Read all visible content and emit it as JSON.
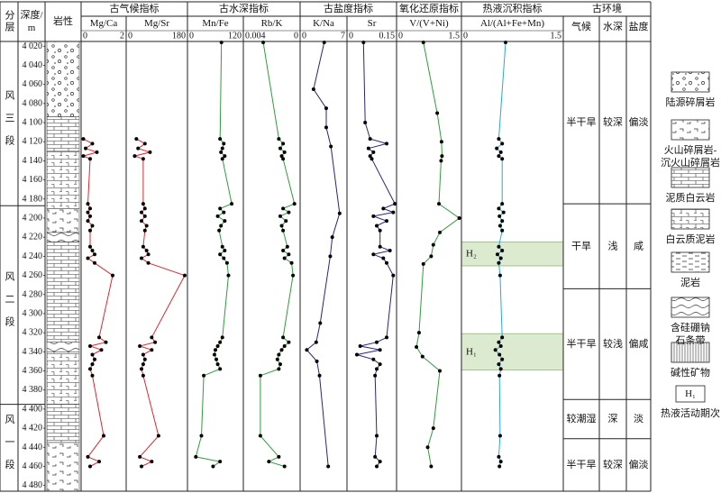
{
  "chart_data": {
    "type": "well-log",
    "layer_header": "分层",
    "depth_header": [
      "深度/",
      "m"
    ],
    "lithology_header": "岩性",
    "ylim": [
      4015,
      4486
    ],
    "yticks": [
      {
        "value": 4020,
        "label": "4 020"
      },
      {
        "value": 4040,
        "label": "4 040"
      },
      {
        "value": 4060,
        "label": "4 060"
      },
      {
        "value": 4080,
        "label": "4 080"
      },
      {
        "value": 4100,
        "label": "4 100"
      },
      {
        "value": 4120,
        "label": "4 120"
      },
      {
        "value": 4140,
        "label": "4 140"
      },
      {
        "value": 4160,
        "label": "4 160"
      },
      {
        "value": 4180,
        "label": "4 180"
      },
      {
        "value": 4200,
        "label": "4 200"
      },
      {
        "value": 4220,
        "label": "4 220"
      },
      {
        "value": 4240,
        "label": "4 240"
      },
      {
        "value": 4260,
        "label": "4 260"
      },
      {
        "value": 4280,
        "label": "4 280"
      },
      {
        "value": 4300,
        "label": "4 300"
      },
      {
        "value": 4320,
        "label": "4 320"
      },
      {
        "value": 4340,
        "label": "4 340"
      },
      {
        "value": 4360,
        "label": "4 360"
      },
      {
        "value": 4380,
        "label": "4 380"
      },
      {
        "value": 4400,
        "label": "4 400"
      },
      {
        "value": 4420,
        "label": "4 420"
      },
      {
        "value": 4440,
        "label": "4 440"
      },
      {
        "value": 4460,
        "label": "4 460"
      },
      {
        "value": 4480,
        "label": "4 480"
      }
    ],
    "strata": [
      {
        "name": "风三段",
        "base": 4187
      },
      {
        "name": "风二段",
        "base": 4395
      },
      {
        "name": "风一段"
      }
    ],
    "lithology": [
      {
        "rock": 0,
        "base": 4094
      },
      {
        "rock": 2,
        "base": 4130
      },
      {
        "rock": 3,
        "base": 4190
      },
      {
        "rock": 1,
        "base": 4215
      },
      {
        "rock": 5,
        "base": 4225
      },
      {
        "rock": 2,
        "base": 4330
      },
      {
        "rock": 5,
        "base": 4340
      },
      {
        "rock": 3,
        "base": 4395
      },
      {
        "rock": 2,
        "base": 4435
      },
      {
        "rock": 1
      }
    ],
    "groups": [
      {
        "name": "古气候指标",
        "tracks": [
          {
            "name": "Mg/Ca",
            "xlim": [
              0,
              2
            ],
            "color": "#e0282e",
            "depths": [
              4117,
              4122,
              4127,
              4131,
              4135,
              4138,
              4185,
              4190,
              4194,
              4198,
              4203,
              4208,
              4213,
              4230,
              4234,
              4238,
              4242,
              4247,
              4260,
              4325,
              4330,
              4334,
              4338,
              4343,
              4348,
              4353,
              4358,
              4365,
              4428,
              4450,
              4455,
              4460
            ],
            "values": [
              0.1,
              0.5,
              0.2,
              0.7,
              0.1,
              0.4,
              0.3,
              0.4,
              0.3,
              0.4,
              0.3,
              0.5,
              0.4,
              0.4,
              0.5,
              0.6,
              0.3,
              0.6,
              1.4,
              0.8,
              1.1,
              0.4,
              0.9,
              0.5,
              0.6,
              0.5,
              0.4,
              0.5,
              1.0,
              0.3,
              0.8,
              0.4
            ]
          },
          {
            "name": "Mg/Sr",
            "xlim": [
              0,
              180
            ],
            "color": "#e0282e",
            "depths": [
              4117,
              4122,
              4127,
              4131,
              4135,
              4138,
              4185,
              4190,
              4194,
              4198,
              4203,
              4208,
              4213,
              4230,
              4234,
              4238,
              4242,
              4247,
              4260,
              4325,
              4330,
              4334,
              4338,
              4343,
              4348,
              4353,
              4358,
              4365,
              4428,
              4450,
              4455,
              4460
            ],
            "values": [
              30,
              55,
              35,
              70,
              25,
              50,
              50,
              55,
              45,
              55,
              45,
              60,
              55,
              50,
              60,
              65,
              45,
              65,
              172,
              75,
              85,
              40,
              75,
              50,
              55,
              50,
              45,
              50,
              95,
              40,
              75,
              45
            ]
          }
        ]
      },
      {
        "name": "古水深指标",
        "tracks": [
          {
            "name": "Mn/Fe",
            "xlim": [
              0,
              120
            ],
            "color": "#2e9e3a",
            "depths": [
              4016,
              4117,
              4122,
              4127,
              4131,
              4135,
              4138,
              4185,
              4190,
              4194,
              4198,
              4203,
              4208,
              4213,
              4230,
              4234,
              4238,
              4242,
              4247,
              4260,
              4325,
              4330,
              4334,
              4338,
              4343,
              4348,
              4353,
              4358,
              4365,
              4428,
              4450,
              4455,
              4460
            ],
            "values": [
              73,
              70,
              78,
              75,
              72,
              80,
              75,
              95,
              70,
              78,
              65,
              80,
              72,
              68,
              75,
              80,
              70,
              78,
              85,
              88,
              75,
              70,
              65,
              60,
              58,
              62,
              65,
              70,
              35,
              30,
              18,
              70,
              55
            ]
          },
          {
            "name": "Rb/K",
            "xlim": [
              0.004,
              0
            ],
            "color": "#2e9e3a",
            "depths": [
              4016,
              4117,
              4122,
              4127,
              4131,
              4135,
              4138,
              4185,
              4190,
              4194,
              4198,
              4203,
              4208,
              4213,
              4230,
              4234,
              4238,
              4242,
              4247,
              4260,
              4325,
              4330,
              4334,
              4338,
              4343,
              4348,
              4353,
              4358,
              4365,
              4428,
              4450,
              4455,
              4460
            ],
            "values": [
              0.0026,
              0.0015,
              0.0012,
              0.0014,
              0.0011,
              0.0013,
              0.0012,
              0.0004,
              0.0012,
              0.0008,
              0.0014,
              0.001,
              0.0013,
              0.0012,
              0.0009,
              0.0012,
              0.0008,
              0.0011,
              0.0006,
              0.0005,
              0.0012,
              0.0008,
              0.0011,
              0.0013,
              0.0015,
              0.0016,
              0.0014,
              0.0015,
              0.0028,
              0.0028,
              0.0015,
              0.0022,
              0.0011
            ]
          }
        ]
      },
      {
        "name": "古盐度指标",
        "tracks": [
          {
            "name": "K/Na",
            "xlim": [
              0,
              7
            ],
            "color": "#26267e",
            "depths": [
              4016,
              4065,
              4085,
              4105,
              4125,
              4195,
              4220,
              4240,
              4310,
              4330,
              4338,
              4350,
              4365,
              4460
            ],
            "values": [
              3.6,
              2.0,
              3.9,
              3.9,
              4.6,
              5.9,
              4.8,
              4.5,
              3.0,
              2.4,
              1.0,
              2.5,
              2.9,
              4.2
            ]
          },
          {
            "name": "Sr",
            "xlim": [
              0,
              0.15
            ],
            "color": "#26267e",
            "depths": [
              4016,
              4100,
              4117,
              4122,
              4127,
              4131,
              4135,
              4138,
              4185,
              4190,
              4194,
              4198,
              4203,
              4208,
              4213,
              4230,
              4234,
              4238,
              4242,
              4247,
              4260,
              4325,
              4330,
              4334,
              4338,
              4343,
              4348,
              4353,
              4358,
              4365,
              4428,
              4450,
              4455,
              4460
            ],
            "values": [
              0.05,
              0.055,
              0.07,
              0.12,
              0.065,
              0.08,
              0.07,
              0.075,
              0.145,
              0.11,
              0.14,
              0.08,
              0.12,
              0.09,
              0.1,
              0.1,
              0.13,
              0.08,
              0.11,
              0.12,
              0.14,
              0.12,
              0.09,
              0.04,
              0.1,
              0.03,
              0.08,
              0.1,
              0.09,
              0.085,
              0.09,
              0.085,
              0.1,
              0.09
            ]
          }
        ]
      },
      {
        "name": "氧化还原指标",
        "tracks": [
          {
            "name": "V/(V+Ni)",
            "xlim": [
              0,
              1.5
            ],
            "color": "#2e9e3a",
            "depths": [
              4016,
              4090,
              4120,
              4135,
              4140,
              4185,
              4200,
              4215,
              4228,
              4240,
              4248,
              4320,
              4335,
              4345,
              4360,
              4420,
              4440,
              4460
            ],
            "values": [
              0.62,
              0.94,
              1.04,
              1.05,
              1.03,
              0.98,
              1.45,
              1.0,
              0.85,
              0.8,
              0.62,
              0.52,
              0.46,
              0.6,
              1.0,
              0.85,
              0.72,
              0.8
            ]
          }
        ]
      },
      {
        "name": "热液沉积指标",
        "tracks": [
          {
            "name": "Al/(Al+Fe+Mn)",
            "xlim": [
              0,
              1.5
            ],
            "color": "#2aa5e2",
            "depths": [
              4016,
              4117,
              4122,
              4127,
              4131,
              4135,
              4138,
              4185,
              4190,
              4194,
              4198,
              4203,
              4208,
              4213,
              4230,
              4234,
              4238,
              4242,
              4247,
              4260,
              4325,
              4330,
              4334,
              4338,
              4343,
              4348,
              4353,
              4358,
              4365,
              4428,
              4450,
              4455,
              4460
            ],
            "values": [
              0.65,
              0.55,
              0.6,
              0.52,
              0.58,
              0.55,
              0.6,
              0.6,
              0.55,
              0.62,
              0.56,
              0.6,
              0.57,
              0.6,
              0.55,
              0.6,
              0.53,
              0.58,
              0.55,
              0.57,
              0.6,
              0.55,
              0.58,
              0.5,
              0.56,
              0.6,
              0.55,
              0.58,
              0.56,
              0.57,
              0.55,
              0.58,
              0.56
            ]
          }
        ]
      }
    ],
    "hydrothermal": [
      {
        "label": "H₂",
        "from": 4225,
        "to": 4250
      },
      {
        "label": "H₁",
        "from": 4321,
        "to": 4359
      }
    ],
    "environment": {
      "title": "古环境",
      "columns": [
        "气候",
        "水深",
        "盐度"
      ],
      "rows": [
        {
          "cells": [
            "半干旱",
            "较深",
            "偏淡"
          ],
          "base": 4185
        },
        {
          "cells": [
            "干旱",
            "浅",
            "咸"
          ],
          "base": 4274
        },
        {
          "cells": [
            "半干旱",
            "较浅",
            "偏咸"
          ],
          "base": 4390
        },
        {
          "cells": [
            "较潮湿",
            "深",
            "淡"
          ],
          "base": 4431
        },
        {
          "cells": [
            "半干旱",
            "较深",
            "偏淡"
          ]
        }
      ]
    },
    "legend": [
      {
        "lines": [
          "陆源碎屑岩"
        ]
      },
      {
        "lines": [
          "火山碎屑岩-",
          "沉火山碎屑岩"
        ]
      },
      {
        "lines": [
          "泥质白云岩"
        ]
      },
      {
        "lines": [
          "白云质泥岩"
        ]
      },
      {
        "lines": [
          "泥岩"
        ]
      },
      {
        "lines": [
          "含硅硼钠",
          "石条带"
        ]
      },
      {
        "lines": [
          "碱性矿物"
        ]
      },
      {
        "lines": [
          "热液活动期次"
        ],
        "symbol": "H₁"
      }
    ]
  }
}
